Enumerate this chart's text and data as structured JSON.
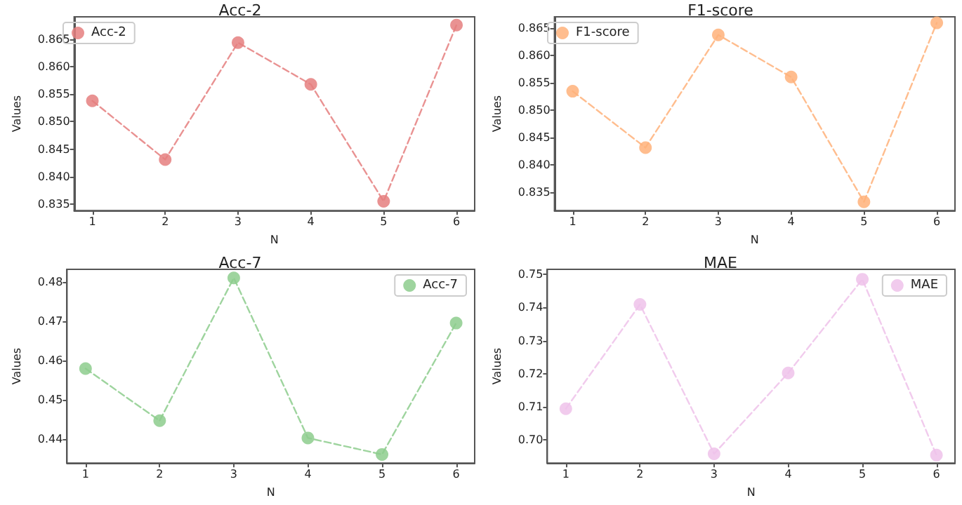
{
  "chart_data": [
    {
      "type": "line",
      "title": "Acc-2",
      "xlabel": "N",
      "ylabel": "Values",
      "x": [
        1,
        2,
        3,
        4,
        5,
        6
      ],
      "xlim": [
        0.75,
        6.25
      ],
      "xticks": [
        1,
        2,
        3,
        4,
        5,
        6
      ],
      "ylim": [
        0.8338,
        0.8691
      ],
      "yticks": [
        0.835,
        {
          "value": 0.84,
          "label": "0.840"
        },
        0.845,
        {
          "value": 0.85,
          "label": "0.850"
        },
        0.855,
        {
          "value": 0.86,
          "label": "0.860"
        },
        0.865
      ],
      "series": [
        {
          "name": "Acc-2",
          "color": "#e57f7f",
          "values": [
            0.8538,
            0.8431,
            0.8644,
            0.8568,
            0.8355,
            0.8676
          ]
        }
      ],
      "marker": "circle",
      "line_style": "dashed",
      "legend": "top left",
      "grid": false
    },
    {
      "type": "line",
      "title": "F1-score",
      "xlabel": "N",
      "ylabel": "Values",
      "x": [
        1,
        2,
        3,
        4,
        5,
        6
      ],
      "xlim": [
        0.75,
        6.25
      ],
      "xticks": [
        1,
        2,
        3,
        4,
        5,
        6
      ],
      "ylim": [
        0.8316,
        0.867
      ],
      "yticks": [
        0.835,
        {
          "value": 0.84,
          "label": "0.840"
        },
        0.845,
        {
          "value": 0.85,
          "label": "0.850"
        },
        0.855,
        {
          "value": 0.86,
          "label": "0.860"
        },
        0.865
      ],
      "series": [
        {
          "name": "F1-score",
          "color": "#ffb27a",
          "values": [
            0.8534,
            0.8431,
            0.8637,
            0.856,
            0.8332,
            0.8659
          ]
        }
      ],
      "marker": "circle",
      "line_style": "dashed",
      "legend": "top left",
      "grid": false
    },
    {
      "type": "line",
      "title": "Acc-7",
      "xlabel": "N",
      "ylabel": "Values",
      "x": [
        1,
        2,
        3,
        4,
        5,
        6
      ],
      "xlim": [
        0.75,
        6.25
      ],
      "xticks": [
        1,
        2,
        3,
        4,
        5,
        6
      ],
      "ylim": [
        0.4338,
        0.4832
      ],
      "yticks": [
        0.44,
        0.45,
        0.46,
        0.47,
        0.48
      ],
      "series": [
        {
          "name": "Acc-7",
          "color": "#8dcd8d",
          "values": [
            0.4579,
            0.4446,
            0.481,
            0.4402,
            0.436,
            0.4695
          ]
        }
      ],
      "marker": "circle",
      "line_style": "dashed",
      "legend": "top right",
      "grid": false
    },
    {
      "type": "line",
      "title": "MAE",
      "xlabel": "N",
      "ylabel": "Values",
      "x": [
        1,
        2,
        3,
        4,
        5,
        6
      ],
      "xlim": [
        0.75,
        6.25
      ],
      "xticks": [
        1,
        2,
        3,
        4,
        5,
        6
      ],
      "ylim": [
        0.693,
        0.7515
      ],
      "yticks": [
        {
          "value": 0.7,
          "label": "0.70"
        },
        0.71,
        0.72,
        0.73,
        0.74,
        0.75
      ],
      "series": [
        {
          "name": "MAE",
          "color": "#eec2ea",
          "values": [
            0.7094,
            0.7409,
            0.6958,
            0.7202,
            0.7485,
            0.6954
          ]
        }
      ],
      "marker": "circle",
      "line_style": "dashed",
      "legend": "top right",
      "grid": false
    }
  ]
}
